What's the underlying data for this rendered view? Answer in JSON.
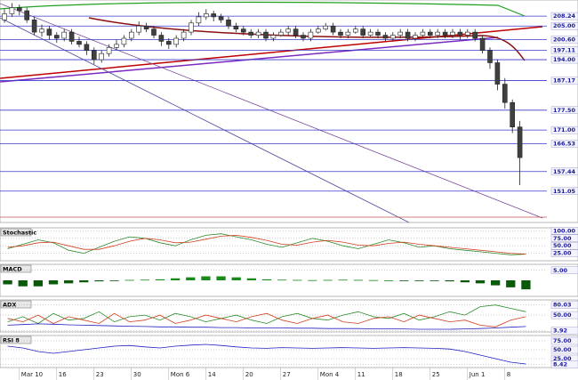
{
  "chart_data": [
    {
      "type": "candlestick",
      "categories": [
        null,
        null,
        "Mar 10",
        null,
        null,
        null,
        null,
        "16",
        null,
        null,
        null,
        null,
        "23",
        null,
        null,
        null,
        null,
        "30",
        null,
        null,
        null,
        null,
        "Mon 6",
        null,
        null,
        null,
        null,
        "14",
        null,
        null,
        null,
        null,
        "20",
        null,
        null,
        null,
        null,
        "27",
        null,
        null,
        null,
        null,
        "Mon 4",
        null,
        null,
        null,
        null,
        "11",
        null,
        null,
        null,
        null,
        "18",
        null,
        null,
        null,
        null,
        "25",
        null,
        null,
        null,
        null,
        "Jun 1",
        null,
        null,
        null,
        null,
        "8",
        null,
        null
      ],
      "open": [
        207,
        209,
        211,
        210,
        207,
        203,
        204,
        202,
        201,
        203,
        200,
        199,
        197,
        194,
        196,
        198,
        199,
        201,
        203,
        205,
        204,
        202,
        200,
        199,
        201,
        203,
        206,
        208,
        209,
        208,
        207,
        205,
        204,
        203,
        202,
        203,
        201,
        202,
        203,
        204,
        202,
        201,
        203,
        204,
        205,
        203,
        202,
        203,
        204,
        202,
        203,
        202,
        201,
        202,
        203,
        201,
        202,
        203,
        202,
        203,
        202,
        203,
        202,
        203,
        201,
        197,
        193,
        186,
        180,
        172
      ],
      "high": [
        210.5,
        212.5,
        212,
        211,
        208,
        205.5,
        205,
        203,
        204,
        204,
        201.5,
        200,
        198,
        197,
        199,
        200.5,
        202,
        204,
        206.5,
        206,
        205,
        203,
        201,
        202,
        204,
        207,
        209.5,
        210.5,
        210,
        209,
        208,
        206,
        205,
        204,
        204,
        204,
        203,
        204,
        205,
        205,
        203,
        204,
        205,
        206,
        206,
        204,
        204,
        205,
        205,
        204,
        204,
        203,
        203,
        204,
        204,
        203,
        204,
        204,
        204,
        204,
        204,
        204,
        204,
        204,
        202,
        198,
        194,
        188,
        181,
        174
      ],
      "low": [
        206,
        208,
        208.5,
        206,
        202,
        201.5,
        200.5,
        199.5,
        200,
        199,
        198,
        195.5,
        192.5,
        193,
        195,
        197,
        198,
        200,
        202,
        203,
        201,
        198.5,
        197.5,
        198,
        200,
        202,
        205,
        207,
        206.5,
        206,
        204,
        203,
        202,
        201,
        201,
        200,
        200,
        201.5,
        202,
        201,
        200,
        200,
        202.5,
        203.5,
        202,
        201,
        201,
        202.5,
        201,
        201.5,
        201,
        200,
        200,
        201,
        200,
        200,
        201,
        201,
        201,
        201,
        201,
        200.5,
        201,
        200,
        196,
        191,
        184,
        178,
        170,
        153
      ],
      "close": [
        209,
        211,
        210,
        207,
        203,
        204,
        202,
        201,
        203,
        200,
        199,
        197,
        194,
        196,
        198,
        199,
        201,
        203,
        205,
        204,
        202,
        200,
        199,
        201,
        203,
        206,
        208,
        209,
        208,
        207,
        205,
        204,
        203,
        202,
        203,
        201,
        202,
        203,
        204,
        202,
        201,
        203,
        204,
        205,
        203,
        202,
        203,
        204,
        202,
        203,
        202,
        201,
        202,
        203,
        201,
        202,
        203,
        202,
        203,
        202,
        203,
        202,
        203,
        201,
        197,
        193,
        186,
        180,
        172,
        162
      ],
      "ylim": [
        140.8,
        213.5
      ],
      "yticks": [
        {
          "value": 208.24,
          "label": "208.24"
        },
        {
          "value": 205,
          "label": "205.00"
        },
        {
          "value": 200.6,
          "label": "200.60"
        },
        {
          "value": 197.11,
          "label": "197.11"
        },
        {
          "value": 194,
          "label": "194.00"
        },
        {
          "value": 187.17,
          "label": "187.17"
        },
        {
          "value": 177.5,
          "label": "177.50"
        },
        {
          "value": 171,
          "label": "171.00"
        },
        {
          "value": 166.53,
          "label": "166.53"
        },
        {
          "value": 157.44,
          "label": "157.44"
        },
        {
          "value": 151.05,
          "label": "151.05"
        }
      ],
      "grid": true
    },
    {
      "type": "line",
      "title": "Stochastic",
      "series": [
        {
          "color": "#2e8b2e",
          "values": [
            40,
            55,
            70,
            60,
            35,
            25,
            45,
            65,
            80,
            75,
            60,
            50,
            70,
            85,
            90,
            80,
            70,
            55,
            45,
            60,
            75,
            65,
            50,
            40,
            55,
            70,
            60,
            45,
            50,
            40,
            35,
            30,
            25,
            20,
            22
          ]
        },
        {
          "color": "#d04020",
          "values": [
            45,
            50,
            60,
            62,
            50,
            38,
            38,
            50,
            65,
            75,
            70,
            60,
            62,
            72,
            82,
            85,
            78,
            68,
            55,
            52,
            62,
            68,
            62,
            52,
            50,
            58,
            62,
            55,
            50,
            45,
            40,
            35,
            30,
            25,
            22
          ]
        }
      ],
      "ylim": [
        0,
        110
      ],
      "yticks": [
        {
          "value": 100,
          "label": "100.00"
        },
        {
          "value": 75,
          "label": "75.00"
        },
        {
          "value": 50,
          "label": "50.00"
        },
        {
          "value": 25,
          "label": "25.00"
        }
      ]
    },
    {
      "type": "bar",
      "title": "MACD",
      "color": "#1a8a1a",
      "values": [
        -2,
        -3,
        -3,
        -2,
        -1.5,
        -1,
        -0.5,
        -0.3,
        0.2,
        0.3,
        0.5,
        1,
        1.5,
        2,
        2,
        1.5,
        1,
        0.5,
        0.3,
        0.2,
        0.1,
        0.2,
        0.3,
        0.2,
        0.1,
        0,
        -0.2,
        -0.3,
        -0.2,
        -0.5,
        -1,
        -1.5,
        -2.5,
        -3.5,
        -4.5
      ],
      "ylim": [
        -8,
        8
      ],
      "yticks": [
        {
          "value": 5,
          "label": "5.00"
        }
      ]
    },
    {
      "type": "line",
      "title": "ADX",
      "series": [
        {
          "color": "#2e8b2e",
          "values": [
            30,
            45,
            25,
            55,
            35,
            40,
            60,
            30,
            45,
            50,
            35,
            55,
            45,
            30,
            40,
            50,
            35,
            25,
            45,
            55,
            40,
            35,
            50,
            60,
            45,
            40,
            55,
            35,
            45,
            60,
            50,
            75,
            80,
            70,
            60
          ]
        },
        {
          "color": "#d04020",
          "values": [
            40,
            30,
            50,
            25,
            45,
            35,
            25,
            55,
            30,
            35,
            50,
            25,
            35,
            50,
            40,
            30,
            45,
            55,
            35,
            25,
            40,
            50,
            30,
            25,
            40,
            45,
            30,
            50,
            40,
            30,
            35,
            20,
            15,
            35,
            45
          ]
        },
        {
          "color": "#2020c0",
          "values": [
            20,
            22,
            24,
            23,
            21,
            20,
            19,
            18,
            17,
            16,
            15,
            15,
            14,
            14,
            13,
            13,
            12,
            12,
            12,
            11,
            11,
            10,
            10,
            10,
            9,
            9,
            9,
            8,
            8,
            8,
            9,
            10,
            12,
            14,
            16
          ]
        }
      ],
      "ylim": [
        0,
        95
      ],
      "yticks": [
        {
          "value": 80.03,
          "label": "80.03"
        },
        {
          "value": 50,
          "label": "50.00"
        },
        {
          "value": 3.92,
          "label": "3.92"
        }
      ]
    },
    {
      "type": "line",
      "title": "RSI 8",
      "series": [
        {
          "color": "#2020c0",
          "values": [
            60,
            55,
            45,
            40,
            45,
            50,
            55,
            60,
            62,
            58,
            55,
            60,
            63,
            65,
            62,
            58,
            55,
            54,
            56,
            55,
            54,
            55,
            56,
            55,
            54,
            55,
            56,
            55,
            54,
            52,
            45,
            35,
            25,
            15,
            10
          ]
        }
      ],
      "ylim": [
        0,
        90
      ],
      "yticks": [
        {
          "value": 75,
          "label": "75.00"
        },
        {
          "value": 50,
          "label": "50.00"
        },
        {
          "value": 25,
          "label": "25.00"
        },
        {
          "value": 8.42,
          "label": "8.42"
        }
      ]
    }
  ]
}
